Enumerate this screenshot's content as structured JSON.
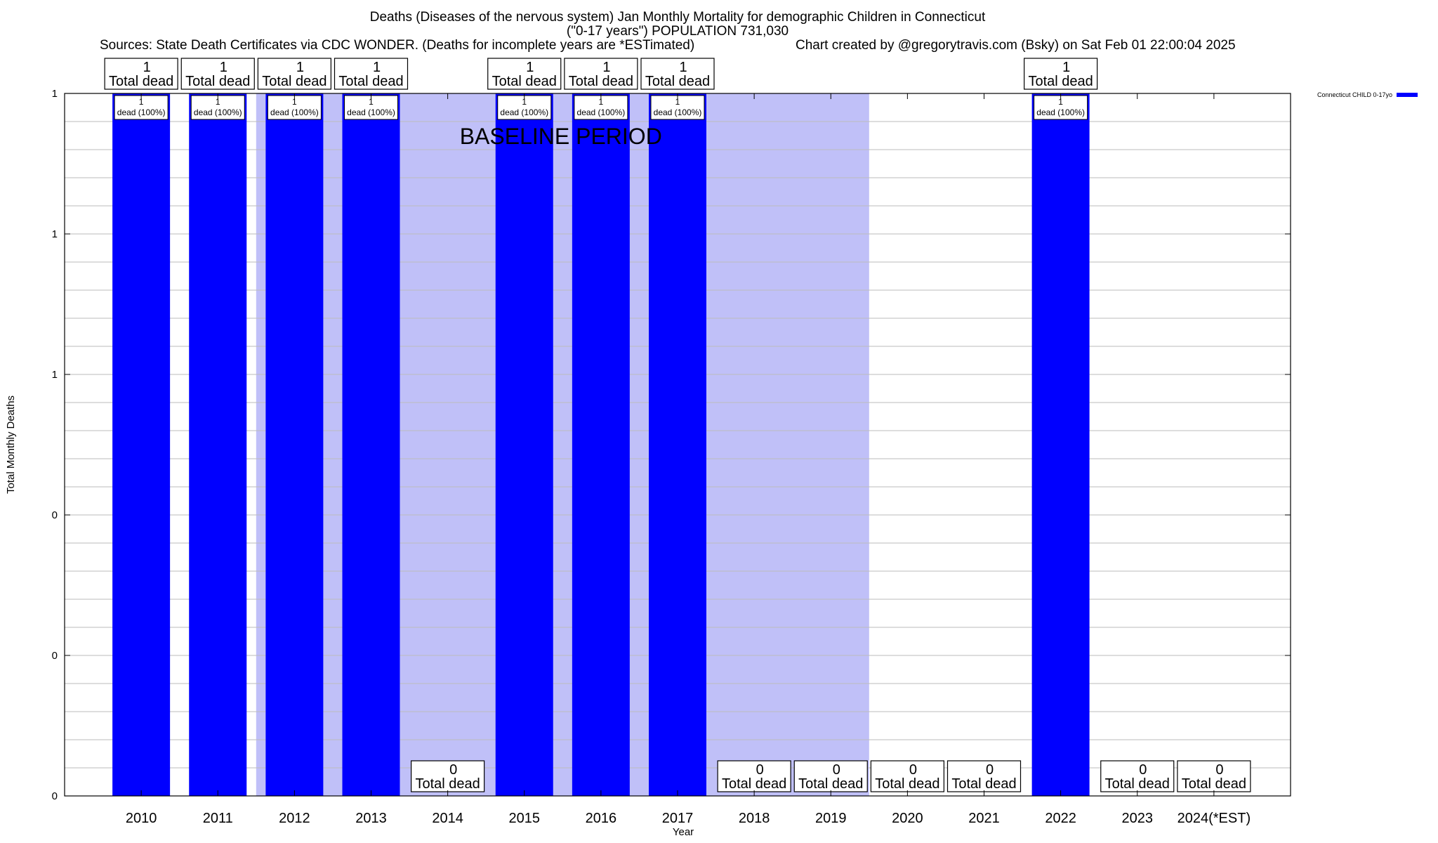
{
  "chart_data": {
    "type": "bar",
    "title": "Deaths (Diseases of the nervous system) Jan Monthly Mortality for demographic Children in Connecticut",
    "subtitle": "(\"0-17 years\") POPULATION 731,030",
    "sources": "Sources: State Death Certificates via CDC WONDER. (Deaths for incomplete years are *ESTimated)",
    "credit": "Chart created by @gregorytravis.com (Bsky) on Sat Feb 01 22:00:04 2025",
    "xlabel": "Year",
    "ylabel": "Total Monthly Deaths",
    "ylim": [
      0,
      1
    ],
    "y_tick_labels": [
      "0",
      "0",
      "0",
      "1",
      "1",
      "1"
    ],
    "categories": [
      "2010",
      "2011",
      "2012",
      "2013",
      "2014",
      "2015",
      "2016",
      "2017",
      "2018",
      "2019",
      "2020",
      "2021",
      "2022",
      "2023",
      "2024(*EST)"
    ],
    "series": [
      {
        "name": "Connecticut CHILD 0-17yo",
        "color": "#0000ff",
        "values": [
          1,
          1,
          1,
          1,
          0,
          1,
          1,
          1,
          0,
          0,
          0,
          0,
          1,
          0,
          0
        ]
      }
    ],
    "total_labels": [
      "1",
      "1",
      "1",
      "1",
      "0",
      "1",
      "1",
      "1",
      "0",
      "0",
      "0",
      "0",
      "1",
      "0",
      "0"
    ],
    "total_caption": "Total dead",
    "inbar_number": "1",
    "inbar_caption": "dead (100%)",
    "baseline_label": "BASELINE PERIOD",
    "baseline_range": [
      "2012",
      "2019"
    ],
    "baseline_color": "#c0c0f8",
    "grid": true,
    "legend_position": "top-right"
  }
}
